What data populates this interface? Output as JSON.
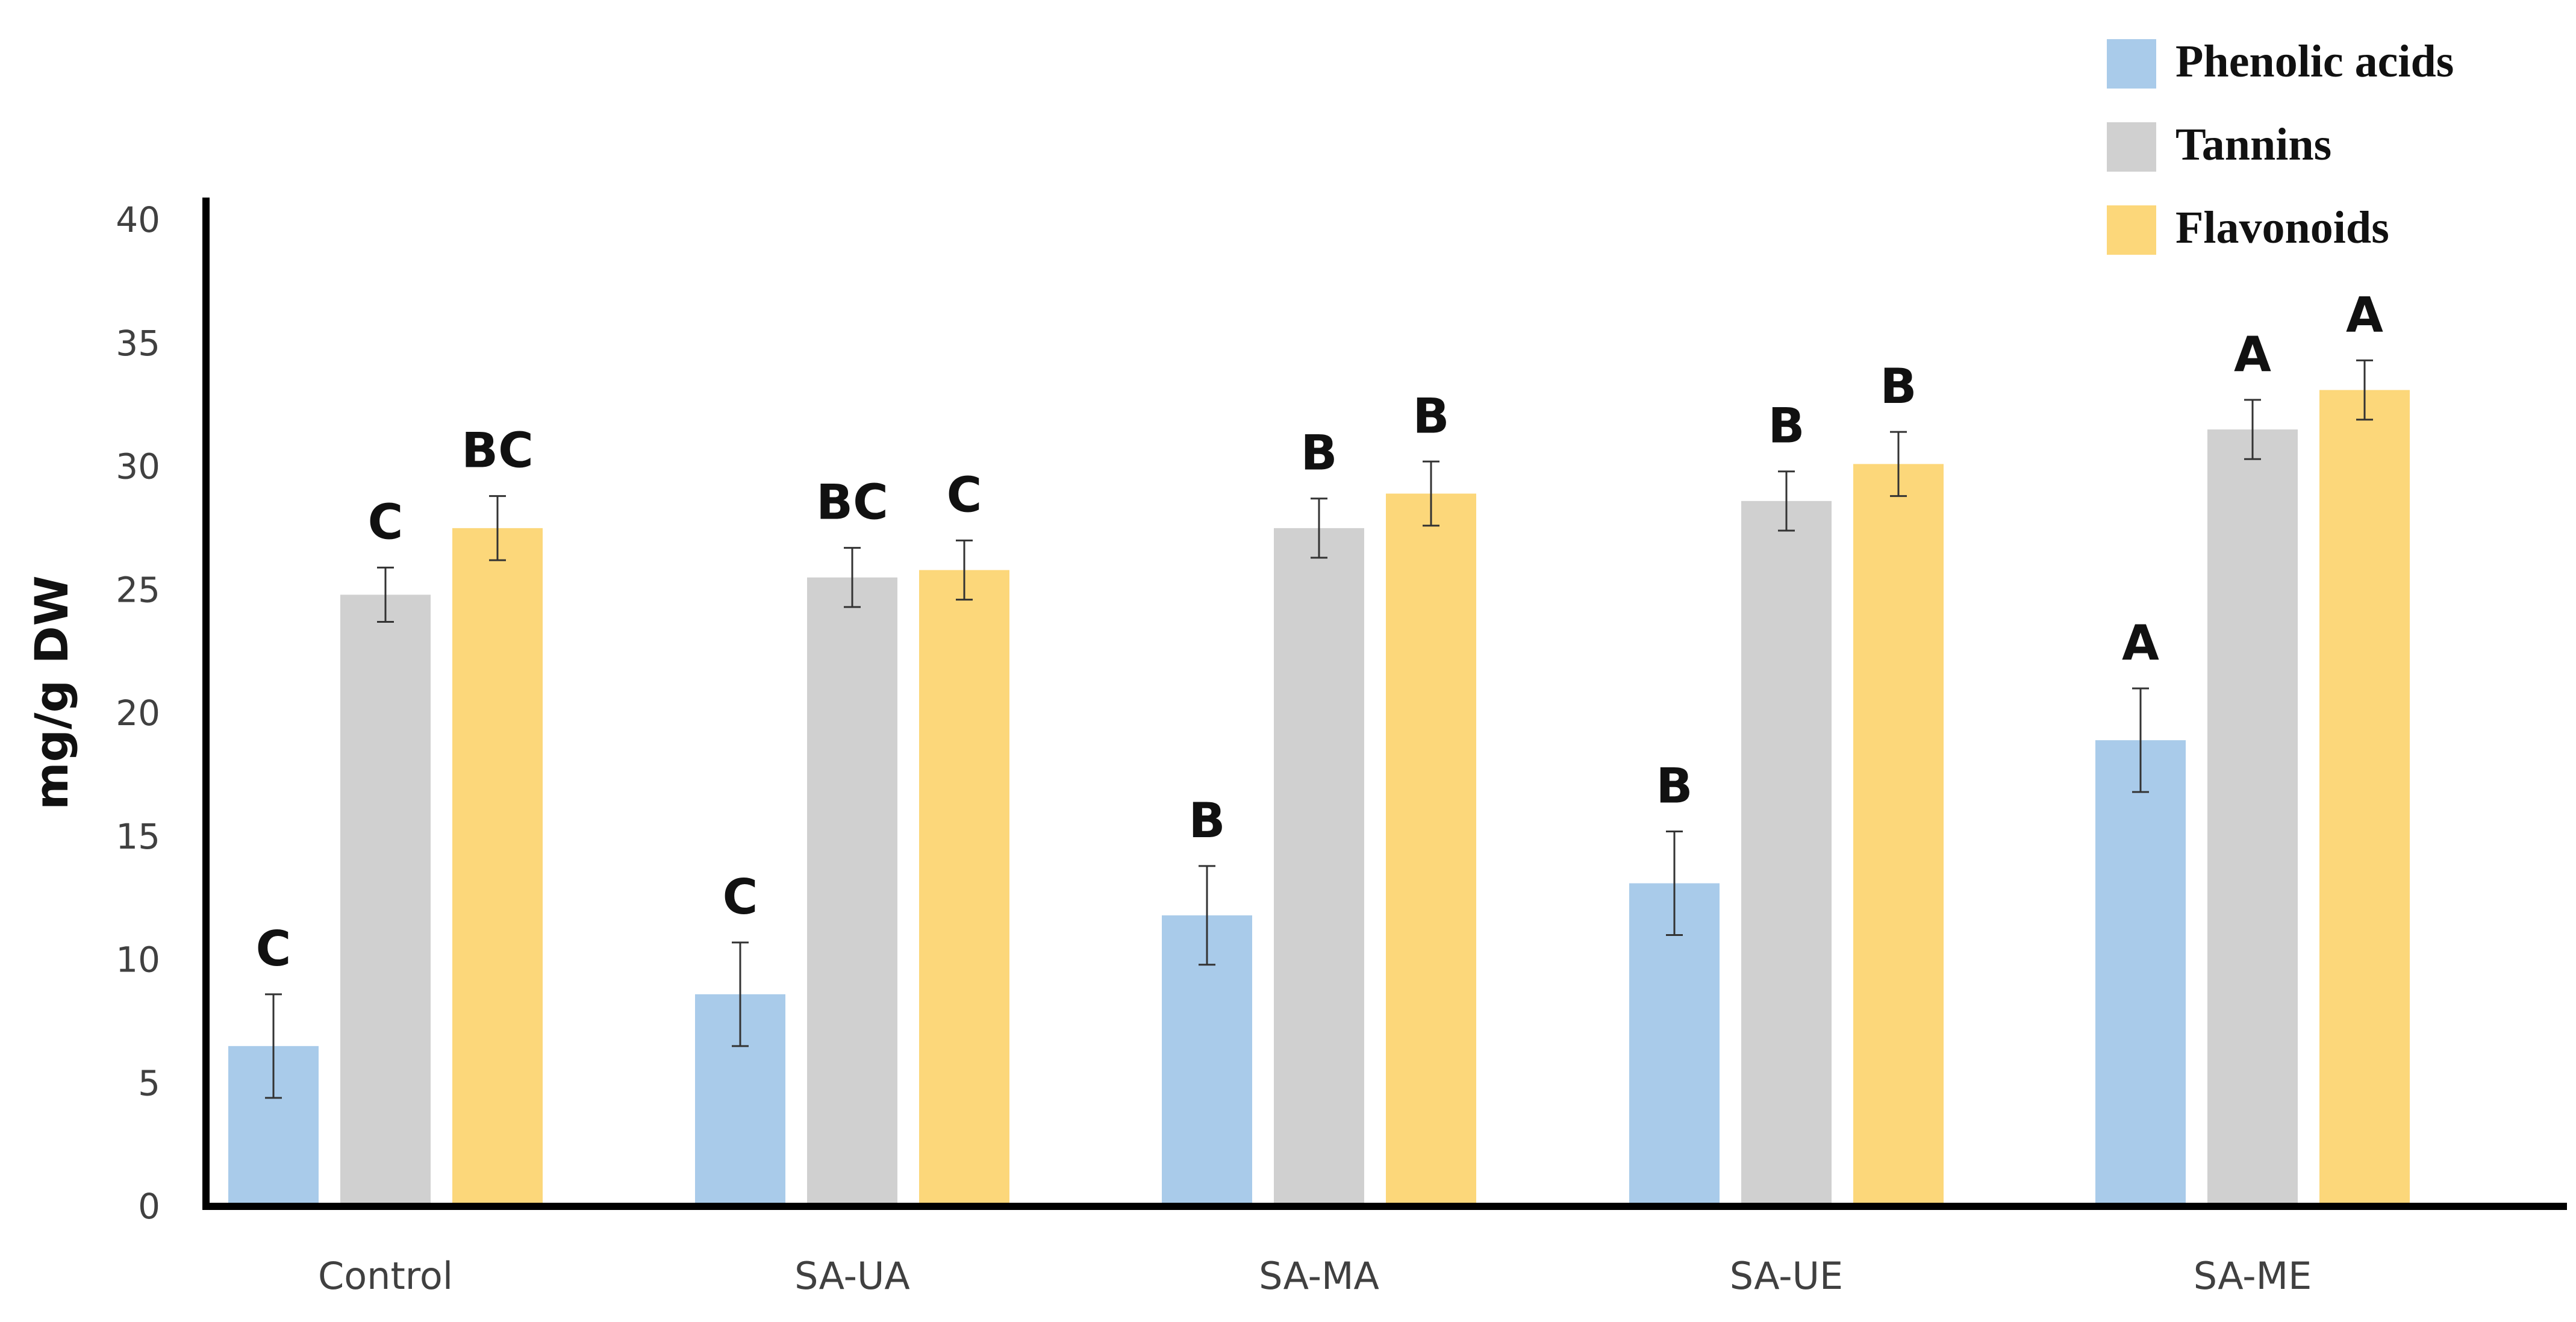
{
  "chart_data": {
    "type": "bar",
    "title": "",
    "xlabel": "",
    "ylabel": "mg/g DW",
    "ylim": [
      0,
      40
    ],
    "yticks": [
      0,
      5,
      10,
      15,
      20,
      25,
      30,
      35,
      40
    ],
    "grid": false,
    "legend_position": "top-right",
    "categories": [
      "Control",
      "SA-UA",
      "SA-MA",
      "SA-UE",
      "SA-ME"
    ],
    "series": [
      {
        "name": "Phenolic acids",
        "color": "#a9cbea",
        "values": [
          6.5,
          8.6,
          11.8,
          13.1,
          18.9
        ],
        "errors": [
          2.1,
          2.1,
          2.0,
          2.1,
          2.1
        ],
        "labels": [
          "C",
          "C",
          "B",
          "B",
          "A"
        ]
      },
      {
        "name": "Tannins",
        "color": "#d0d0d0",
        "values": [
          24.8,
          25.5,
          27.5,
          28.6,
          31.5
        ],
        "errors": [
          1.1,
          1.2,
          1.2,
          1.2,
          1.2
        ],
        "labels": [
          "C",
          "BC",
          "B",
          "B",
          "A"
        ]
      },
      {
        "name": "Flavonoids",
        "color": "#fcd77a",
        "values": [
          27.5,
          25.8,
          28.9,
          30.1,
          33.1
        ],
        "errors": [
          1.3,
          1.2,
          1.3,
          1.3,
          1.2
        ],
        "labels": [
          "BC",
          "C",
          "B",
          "B",
          "A"
        ]
      }
    ]
  }
}
